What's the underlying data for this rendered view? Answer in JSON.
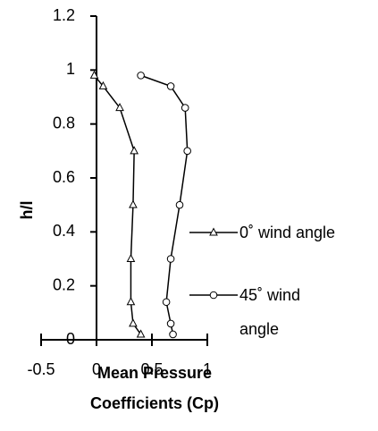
{
  "chart_data": {
    "type": "line",
    "xlabel": "Mean Pressure Coefficients (Cp)",
    "ylabel": "h/l",
    "xlim": [
      -0.5,
      1
    ],
    "xticks": [
      -0.5,
      0,
      0.5,
      1
    ],
    "ylim": [
      0,
      1.2
    ],
    "yticks": [
      0,
      0.2,
      0.4,
      0.6,
      0.8,
      1,
      1.2
    ],
    "series": [
      {
        "name": "0˚ wind angle",
        "color": "#000000",
        "marker": "triangle",
        "x": [
          -0.02,
          0.06,
          0.21,
          0.34,
          0.33,
          0.31,
          0.31,
          0.33,
          0.4
        ],
        "values": [
          0.98,
          0.94,
          0.86,
          0.7,
          0.5,
          0.3,
          0.14,
          0.06,
          0.02
        ]
      },
      {
        "name": "45˚ wind angle",
        "color": "#000000",
        "marker": "circle",
        "x": [
          0.4,
          0.67,
          0.8,
          0.82,
          0.75,
          0.67,
          0.63,
          0.67,
          0.69
        ],
        "values": [
          0.98,
          0.94,
          0.86,
          0.7,
          0.5,
          0.3,
          0.14,
          0.06,
          0.02
        ]
      }
    ]
  }
}
